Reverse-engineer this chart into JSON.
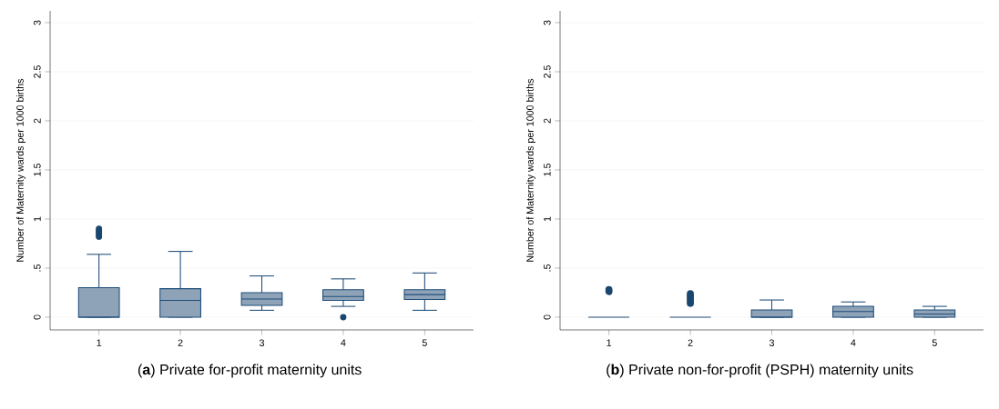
{
  "chart_data": [
    {
      "type": "box",
      "title": "(**a**) Private for-profit maternity units",
      "ylabel": "Number of Maternity wards per 1000 births",
      "categories": [
        "1",
        "2",
        "3",
        "4",
        "5"
      ],
      "color": "#8fa3b8",
      "ylim": [
        -0.13,
        3.12
      ],
      "yticks": [
        0,
        {
          "value": 0.5,
          "label": ".5"
        },
        1,
        1.5,
        2,
        2.5,
        3
      ],
      "grid": "y",
      "marker": "circle",
      "boxes": [
        {
          "low": 0,
          "q1": 0,
          "median": 0,
          "q3": 0.3,
          "high": 0.64,
          "outliers": [
            0.82,
            0.84,
            0.86,
            0.88,
            0.9
          ]
        },
        {
          "low": 0,
          "q1": 0,
          "median": 0.17,
          "q3": 0.29,
          "high": 0.67
        },
        {
          "low": 0.07,
          "q1": 0.12,
          "median": 0.185,
          "q3": 0.25,
          "high": 0.42
        },
        {
          "low": 0.11,
          "q1": 0.17,
          "median": 0.21,
          "q3": 0.28,
          "high": 0.39,
          "outliers": [
            0
          ]
        },
        {
          "low": 0.07,
          "q1": 0.18,
          "median": 0.23,
          "q3": 0.28,
          "high": 0.45
        }
      ]
    },
    {
      "type": "box",
      "title": "(**b**) Private non-for-profit (PSPH) maternity units",
      "ylabel": "Number of Maternity wards per 1000 births",
      "categories": [
        "1",
        "2",
        "3",
        "4",
        "5"
      ],
      "color": "#8fa3b8",
      "ylim": [
        -0.13,
        3.12
      ],
      "yticks": [
        0,
        {
          "value": 0.5,
          "label": ".5"
        },
        1,
        1.5,
        2,
        2.5,
        3
      ],
      "grid": "y",
      "marker": "circle",
      "boxes": [
        {
          "low": 0,
          "q1": 0,
          "median": 0,
          "q3": 0,
          "high": 0,
          "outliers": [
            0.26,
            0.28
          ]
        },
        {
          "low": 0,
          "q1": 0,
          "median": 0,
          "q3": 0,
          "high": 0,
          "outliers": [
            0.14,
            0.16,
            0.18,
            0.2,
            0.22,
            0.24
          ]
        },
        {
          "low": 0,
          "q1": 0,
          "median": 0,
          "q3": 0.073,
          "high": 0.175
        },
        {
          "low": 0,
          "q1": 0,
          "median": 0.057,
          "q3": 0.11,
          "high": 0.155
        },
        {
          "low": 0,
          "q1": 0,
          "median": 0.032,
          "q3": 0.073,
          "high": 0.11
        }
      ]
    }
  ]
}
